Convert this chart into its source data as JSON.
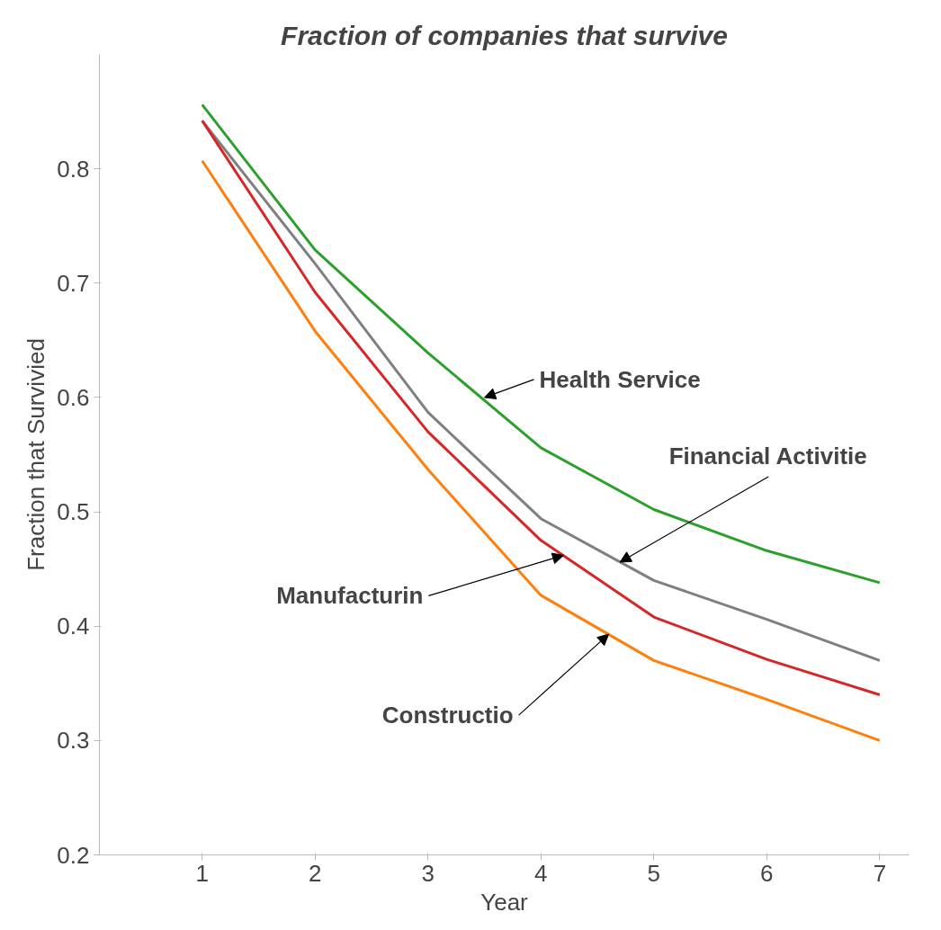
{
  "chart_data": {
    "type": "line",
    "title": "Fraction of companies that survive",
    "xlabel": "Year",
    "ylabel": "Fraction that Survivied",
    "x": [
      1,
      2,
      3,
      4,
      5,
      6,
      7
    ],
    "series": [
      {
        "color": "#2ca02c",
        "values": [
          0.856,
          0.729,
          0.639,
          0.556,
          0.502,
          0.466,
          0.438
        ]
      },
      {
        "color": "#7f7f7f",
        "values": [
          0.842,
          0.717,
          0.587,
          0.494,
          0.44,
          0.406,
          0.37
        ]
      },
      {
        "color": "#d62728",
        "values": [
          0.842,
          0.692,
          0.57,
          0.475,
          0.408,
          0.371,
          0.34
        ]
      },
      {
        "color": "#ff7f0e",
        "values": [
          0.807,
          0.658,
          0.537,
          0.427,
          0.37,
          0.336,
          0.3
        ]
      }
    ],
    "annotations": [
      {
        "text": "Health Service",
        "x": 3.5,
        "y": 0.6
      },
      {
        "text": "Financial Activitie",
        "x": 4.7,
        "y": 0.456
      },
      {
        "text": "Manufacturin",
        "x": 4.2,
        "y": 0.462
      },
      {
        "text": "Constructio",
        "x": 4.6,
        "y": 0.393
      }
    ],
    "xlim": [
      0.09,
      7.26
    ],
    "ylim": [
      0.2,
      0.9
    ],
    "xticks": [
      1,
      2,
      3,
      4,
      5,
      6,
      7
    ],
    "yticks": [
      0.2,
      0.3,
      0.4,
      0.5,
      0.6,
      0.7,
      0.8
    ],
    "grid": false,
    "marker": "none",
    "line_style": "solid"
  }
}
